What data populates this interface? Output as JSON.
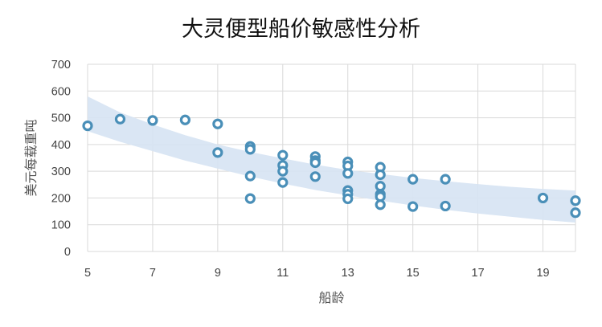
{
  "chart_data": {
    "type": "scatter",
    "title": "大灵便型船价敏感性分析",
    "xlabel": "船龄",
    "ylabel": "美元每载重吨",
    "xlim": [
      5,
      20
    ],
    "ylim": [
      0,
      700
    ],
    "x_ticks": [
      5,
      7,
      9,
      11,
      13,
      15,
      17,
      19
    ],
    "y_ticks": [
      0,
      100,
      200,
      300,
      400,
      500,
      600,
      700
    ],
    "grid": true,
    "colors": {
      "marker": "#4a8fb8",
      "band": "#d6e3f3",
      "grid": "#d9d9d9"
    },
    "confidence_band": {
      "x": [
        5,
        6,
        7,
        8,
        9,
        10,
        11,
        12,
        13,
        14,
        15,
        16,
        17,
        18,
        19,
        20
      ],
      "upper": [
        580,
        520,
        475,
        435,
        400,
        372,
        348,
        325,
        305,
        290,
        275,
        263,
        252,
        242,
        234,
        228
      ],
      "lower": [
        450,
        410,
        375,
        340,
        310,
        280,
        254,
        230,
        210,
        190,
        172,
        156,
        142,
        130,
        118,
        108
      ]
    },
    "points": [
      {
        "x": 5,
        "y": 470
      },
      {
        "x": 6,
        "y": 495
      },
      {
        "x": 7,
        "y": 490
      },
      {
        "x": 8,
        "y": 492
      },
      {
        "x": 9,
        "y": 477
      },
      {
        "x": 9,
        "y": 370
      },
      {
        "x": 10,
        "y": 393
      },
      {
        "x": 10,
        "y": 382
      },
      {
        "x": 10,
        "y": 282
      },
      {
        "x": 10,
        "y": 198
      },
      {
        "x": 11,
        "y": 360
      },
      {
        "x": 11,
        "y": 322
      },
      {
        "x": 11,
        "y": 300
      },
      {
        "x": 11,
        "y": 258
      },
      {
        "x": 12,
        "y": 355
      },
      {
        "x": 12,
        "y": 340
      },
      {
        "x": 12,
        "y": 332
      },
      {
        "x": 12,
        "y": 280
      },
      {
        "x": 13,
        "y": 335
      },
      {
        "x": 13,
        "y": 320
      },
      {
        "x": 13,
        "y": 292
      },
      {
        "x": 13,
        "y": 228
      },
      {
        "x": 13,
        "y": 214
      },
      {
        "x": 13,
        "y": 197
      },
      {
        "x": 14,
        "y": 315
      },
      {
        "x": 14,
        "y": 287
      },
      {
        "x": 14,
        "y": 244
      },
      {
        "x": 14,
        "y": 214
      },
      {
        "x": 14,
        "y": 205
      },
      {
        "x": 14,
        "y": 175
      },
      {
        "x": 15,
        "y": 270
      },
      {
        "x": 15,
        "y": 168
      },
      {
        "x": 16,
        "y": 270
      },
      {
        "x": 16,
        "y": 170
      },
      {
        "x": 19,
        "y": 200
      },
      {
        "x": 20,
        "y": 190
      },
      {
        "x": 20,
        "y": 145
      }
    ]
  }
}
